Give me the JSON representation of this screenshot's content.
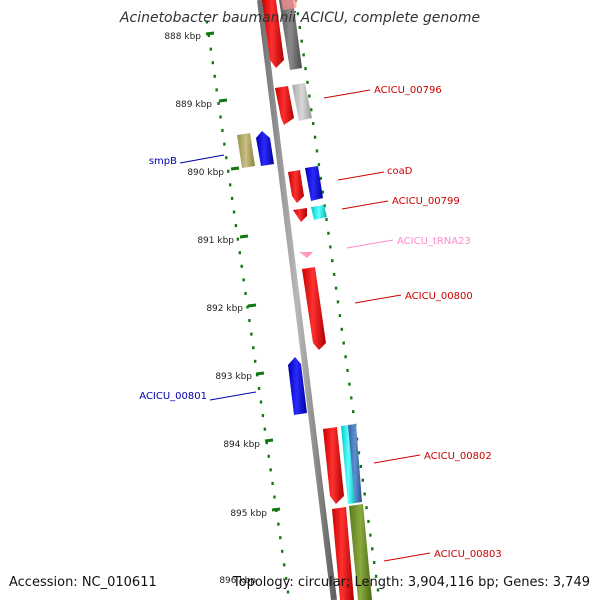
{
  "title": "Acinetobacter baumannii ACICU, complete genome",
  "footer": {
    "accession": "Accession: NC_010611",
    "summary": "Topology: circular; Length: 3,904,116 bp; Genes: 3,749"
  },
  "colors": {
    "forward_cds": "#ff0000",
    "reverse_cds": "#0000ff",
    "trna": "#ff88cc",
    "tick": "#117711",
    "backbone": "#888888"
  },
  "kbp_labels": [
    "888 kbp",
    "889 kbp",
    "890 kbp",
    "891 kbp",
    "892 kbp",
    "893 kbp",
    "894 kbp",
    "895 kbp",
    "896 kbp"
  ],
  "features": [
    {
      "name": "ACICU_00796",
      "strand": "+",
      "color": "#cc0000"
    },
    {
      "name": "smpB",
      "strand": "-",
      "color": "#0000aa"
    },
    {
      "name": "coaD",
      "strand": "+",
      "color": "#cc0000"
    },
    {
      "name": "ACICU_00799",
      "strand": "+",
      "color": "#cc0000"
    },
    {
      "name": "ACICU_tRNA23",
      "strand": "+",
      "color": "#ff88cc"
    },
    {
      "name": "ACICU_00800",
      "strand": "+",
      "color": "#cc0000"
    },
    {
      "name": "ACICU_00801",
      "strand": "-",
      "color": "#0000aa"
    },
    {
      "name": "ACICU_00802",
      "strand": "+",
      "color": "#cc0000"
    },
    {
      "name": "ACICU_00803",
      "strand": "+",
      "color": "#cc0000"
    }
  ]
}
